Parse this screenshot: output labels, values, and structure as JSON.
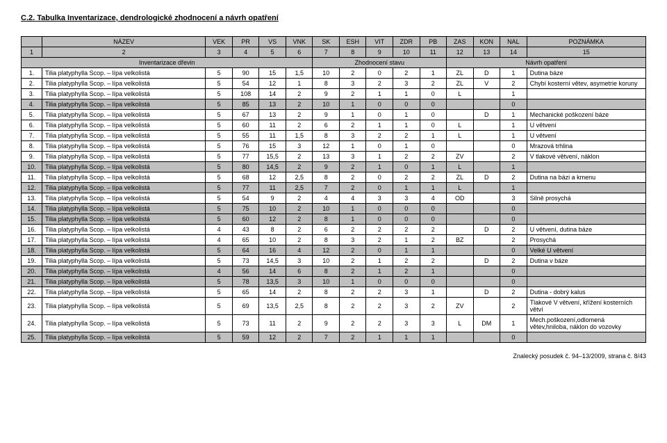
{
  "title": "C.2. Tabulka Inventarizace, dendrologické zhodnocení a návrh opatření",
  "headers": [
    "NÁZEV",
    "VEK",
    "PR",
    "VS",
    "VNK",
    "SK",
    "ESH",
    "VIT",
    "ZDR",
    "PB",
    "ZAS",
    "KON",
    "NAL",
    "POZNÁMKA"
  ],
  "colnums": [
    "1",
    "2",
    "3",
    "4",
    "5",
    "6",
    "7",
    "8",
    "9",
    "10",
    "11",
    "12",
    "13",
    "14",
    "15"
  ],
  "section": {
    "a": "Inventarizace dřevin",
    "b": "Zhodnocení stavu",
    "c": "Návrh opatření"
  },
  "rows": [
    {
      "i": "1.",
      "name": "Tilia platyphylla Scop. – lípa velkolistá",
      "vek": "5",
      "pr": "90",
      "vs": "15",
      "vnk": "1,5",
      "sk": "10",
      "esh": "2",
      "vit": "0",
      "zdr": "2",
      "pb": "1",
      "zas": "ZL",
      "kon": "D",
      "nal": "1",
      "note": "Dutina báze",
      "gray": false
    },
    {
      "i": "2.",
      "name": "Tilia platyphylla Scop. – lípa velkolistá",
      "vek": "5",
      "pr": "54",
      "vs": "12",
      "vnk": "1",
      "sk": "8",
      "esh": "3",
      "vit": "2",
      "zdr": "3",
      "pb": "2",
      "zas": "ZL",
      "kon": "V",
      "nal": "2",
      "note": "Chybí kosterní větev, asymetrie koruny",
      "gray": false
    },
    {
      "i": "3.",
      "name": "Tilia platyphylla Scop. – lípa velkolistá",
      "vek": "5",
      "pr": "108",
      "vs": "14",
      "vnk": "2",
      "sk": "9",
      "esh": "2",
      "vit": "1",
      "zdr": "1",
      "pb": "0",
      "zas": "L",
      "kon": "",
      "nal": "1",
      "note": "",
      "gray": false
    },
    {
      "i": "4.",
      "name": "Tilia platyphylla Scop. – lípa velkolistá",
      "vek": "5",
      "pr": "85",
      "vs": "13",
      "vnk": "2",
      "sk": "10",
      "esh": "1",
      "vit": "0",
      "zdr": "0",
      "pb": "0",
      "zas": "",
      "kon": "",
      "nal": "0",
      "note": "",
      "gray": true
    },
    {
      "i": "5.",
      "name": "Tilia platyphylla Scop. – lípa velkolistá",
      "vek": "5",
      "pr": "67",
      "vs": "13",
      "vnk": "2",
      "sk": "9",
      "esh": "1",
      "vit": "0",
      "zdr": "1",
      "pb": "0",
      "zas": "",
      "kon": "D",
      "nal": "1",
      "note": "Mechanické poškození báze",
      "gray": false
    },
    {
      "i": "6.",
      "name": "Tilia platyphylla Scop. – lípa velkolistá",
      "vek": "5",
      "pr": "60",
      "vs": "11",
      "vnk": "2",
      "sk": "6",
      "esh": "2",
      "vit": "1",
      "zdr": "1",
      "pb": "0",
      "zas": "L",
      "kon": "",
      "nal": "1",
      "note": "U větvení",
      "gray": false
    },
    {
      "i": "7.",
      "name": "Tilia platyphylla Scop. – lípa velkolistá",
      "vek": "5",
      "pr": "55",
      "vs": "11",
      "vnk": "1,5",
      "sk": "8",
      "esh": "3",
      "vit": "2",
      "zdr": "2",
      "pb": "1",
      "zas": "L",
      "kon": "",
      "nal": "1",
      "note": "U větvení",
      "gray": false
    },
    {
      "i": "8.",
      "name": "Tilia platyphylla Scop. – lípa velkolistá",
      "vek": "5",
      "pr": "76",
      "vs": "15",
      "vnk": "3",
      "sk": "12",
      "esh": "1",
      "vit": "0",
      "zdr": "1",
      "pb": "0",
      "zas": "",
      "kon": "",
      "nal": "0",
      "note": "Mrazová trhlina",
      "gray": false
    },
    {
      "i": "9.",
      "name": "Tilia platyphylla Scop. – lípa velkolistá",
      "vek": "5",
      "pr": "77",
      "vs": "15,5",
      "vnk": "2",
      "sk": "13",
      "esh": "3",
      "vit": "1",
      "zdr": "2",
      "pb": "2",
      "zas": "ZV",
      "kon": "",
      "nal": "2",
      "note": "V tlakové větvení, náklon",
      "gray": false
    },
    {
      "i": "10.",
      "name": "Tilia platyphylla Scop. – lípa velkolistá",
      "vek": "5",
      "pr": "80",
      "vs": "14,5",
      "vnk": "2",
      "sk": "9",
      "esh": "2",
      "vit": "1",
      "zdr": "0",
      "pb": "1",
      "zas": "L",
      "kon": "",
      "nal": "1",
      "note": "",
      "gray": true
    },
    {
      "i": "11.",
      "name": "Tilia platyphylla Scop. – lípa velkolistá",
      "vek": "5",
      "pr": "68",
      "vs": "12",
      "vnk": "2,5",
      "sk": "8",
      "esh": "2",
      "vit": "0",
      "zdr": "2",
      "pb": "2",
      "zas": "ZL",
      "kon": "D",
      "nal": "2",
      "note": "Dutina na bázi a kmenu",
      "gray": false
    },
    {
      "i": "12.",
      "name": "Tilia platyphylla Scop. – lípa velkolistá",
      "vek": "5",
      "pr": "77",
      "vs": "11",
      "vnk": "2,5",
      "sk": "7",
      "esh": "2",
      "vit": "0",
      "zdr": "1",
      "pb": "1",
      "zas": "L",
      "kon": "",
      "nal": "1",
      "note": "",
      "gray": true
    },
    {
      "i": "13.",
      "name": "Tilia platyphylla Scop. – lípa velkolistá",
      "vek": "5",
      "pr": "54",
      "vs": "9",
      "vnk": "2",
      "sk": "4",
      "esh": "4",
      "vit": "3",
      "zdr": "3",
      "pb": "4",
      "zas": "OD",
      "kon": "",
      "nal": "3",
      "note": "Silně prosychá",
      "gray": false
    },
    {
      "i": "14.",
      "name": "Tilia platyphylla Scop. – lípa velkolistá",
      "vek": "5",
      "pr": "75",
      "vs": "10",
      "vnk": "2",
      "sk": "10",
      "esh": "1",
      "vit": "0",
      "zdr": "0",
      "pb": "0",
      "zas": "",
      "kon": "",
      "nal": "0",
      "note": "",
      "gray": true
    },
    {
      "i": "15.",
      "name": "Tilia platyphylla Scop. – lípa velkolistá",
      "vek": "5",
      "pr": "60",
      "vs": "12",
      "vnk": "2",
      "sk": "8",
      "esh": "1",
      "vit": "0",
      "zdr": "0",
      "pb": "0",
      "zas": "",
      "kon": "",
      "nal": "0",
      "note": "",
      "gray": true
    },
    {
      "i": "16.",
      "name": "Tilia platyphylla Scop. – lípa velkolistá",
      "vek": "4",
      "pr": "43",
      "vs": "8",
      "vnk": "2",
      "sk": "6",
      "esh": "2",
      "vit": "2",
      "zdr": "2",
      "pb": "2",
      "zas": "",
      "kon": "D",
      "nal": "2",
      "note": "U větvení, dutina báze",
      "gray": false
    },
    {
      "i": "17.",
      "name": "Tilia platyphylla Scop. – lípa velkolistá",
      "vek": "4",
      "pr": "65",
      "vs": "10",
      "vnk": "2",
      "sk": "8",
      "esh": "3",
      "vit": "2",
      "zdr": "1",
      "pb": "2",
      "zas": "BZ",
      "kon": "",
      "nal": "2",
      "note": "Prosychá",
      "gray": false
    },
    {
      "i": "18.",
      "name": "Tilia platyphylla Scop. – lípa velkolistá",
      "vek": "5",
      "pr": "64",
      "vs": "16",
      "vnk": "4",
      "sk": "12",
      "esh": "2",
      "vit": "0",
      "zdr": "1",
      "pb": "1",
      "zas": "",
      "kon": "",
      "nal": "0",
      "note": "Velké U větvení",
      "gray": true
    },
    {
      "i": "19.",
      "name": "Tilia platyphylla Scop. – lípa velkolistá",
      "vek": "5",
      "pr": "73",
      "vs": "14,5",
      "vnk": "3",
      "sk": "10",
      "esh": "2",
      "vit": "1",
      "zdr": "2",
      "pb": "2",
      "zas": "",
      "kon": "D",
      "nal": "2",
      "note": "Dutina v báze",
      "gray": false
    },
    {
      "i": "20.",
      "name": "Tilia platyphylla Scop. – lípa velkolistá",
      "vek": "4",
      "pr": "56",
      "vs": "14",
      "vnk": "6",
      "sk": "8",
      "esh": "2",
      "vit": "1",
      "zdr": "2",
      "pb": "1",
      "zas": "",
      "kon": "",
      "nal": "0",
      "note": "",
      "gray": true
    },
    {
      "i": "21.",
      "name": "Tilia platyphylla Scop. – lípa velkolistá",
      "vek": "5",
      "pr": "78",
      "vs": "13,5",
      "vnk": "3",
      "sk": "10",
      "esh": "1",
      "vit": "0",
      "zdr": "0",
      "pb": "0",
      "zas": "",
      "kon": "",
      "nal": "0",
      "note": "",
      "gray": true
    },
    {
      "i": "22.",
      "name": "Tilia platyphylla Scop. – lípa velkolistá",
      "vek": "5",
      "pr": "65",
      "vs": "14",
      "vnk": "2",
      "sk": "8",
      "esh": "2",
      "vit": "2",
      "zdr": "3",
      "pb": "1",
      "zas": "",
      "kon": "D",
      "nal": "2",
      "note": "Dutina - dobrý kalus",
      "gray": false
    },
    {
      "i": "23.",
      "name": "Tilia platyphylla Scop. – lípa velkolistá",
      "vek": "5",
      "pr": "69",
      "vs": "13,5",
      "vnk": "2,5",
      "sk": "8",
      "esh": "2",
      "vit": "2",
      "zdr": "3",
      "pb": "2",
      "zas": "ZV",
      "kon": "",
      "nal": "2",
      "note": "Tlakové V větvení, křížení kosterních větví",
      "gray": false
    },
    {
      "i": "24.",
      "name": "Tilia platyphylla Scop. – lípa velkolistá",
      "vek": "5",
      "pr": "73",
      "vs": "11",
      "vnk": "2",
      "sk": "9",
      "esh": "2",
      "vit": "2",
      "zdr": "3",
      "pb": "3",
      "zas": "L",
      "kon": "DM",
      "nal": "1",
      "note": "Mech.poškození,odlomená větev,hniloba, náklon do vozovky",
      "gray": false
    },
    {
      "i": "25.",
      "name": "Tilia platyphylla Scop. – lípa velkolistá",
      "vek": "5",
      "pr": "59",
      "vs": "12",
      "vnk": "2",
      "sk": "7",
      "esh": "2",
      "vit": "1",
      "zdr": "1",
      "pb": "1",
      "zas": "",
      "kon": "",
      "nal": "0",
      "note": "",
      "gray": true
    }
  ],
  "footer": "Znalecký posudek č. 94–13/2009, strana č. 8/43"
}
